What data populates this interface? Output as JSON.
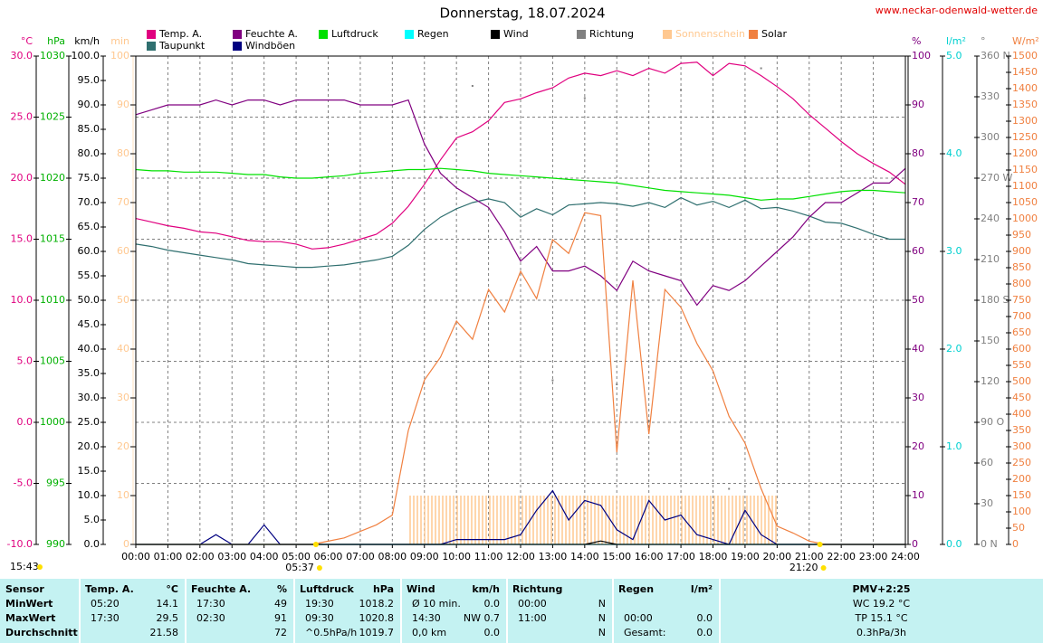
{
  "chart_data": {
    "type": "line",
    "title": "Donnerstag, 18.07.2024",
    "source": "www.neckar-odenwald-wetter.de",
    "sunrise": "05:37",
    "sunset": "21:20",
    "daylight": "15:43",
    "xlim": [
      0,
      24
    ],
    "xgrid": true,
    "xticks": [
      {
        "value": 0,
        "label": "00:00"
      },
      {
        "value": 1,
        "label": "01:00"
      },
      {
        "value": 2,
        "label": "02:00"
      },
      {
        "value": 3,
        "label": "03:00"
      },
      {
        "value": 4,
        "label": "04:00"
      },
      {
        "value": 5,
        "label": "05:00"
      },
      {
        "value": 6,
        "label": "06:00"
      },
      {
        "value": 7,
        "label": "07:00"
      },
      {
        "value": 8,
        "label": "08:00"
      },
      {
        "value": 9,
        "label": "09:00"
      },
      {
        "value": 10,
        "label": "10:00"
      },
      {
        "value": 11,
        "label": "11:00"
      },
      {
        "value": 12,
        "label": "12:00"
      },
      {
        "value": 13,
        "label": "13:00"
      },
      {
        "value": 14,
        "label": "14:00"
      },
      {
        "value": 15,
        "label": "15:00"
      },
      {
        "value": 16,
        "label": "16:00"
      },
      {
        "value": 17,
        "label": "17:00"
      },
      {
        "value": 18,
        "label": "18:00"
      },
      {
        "value": 19,
        "label": "19:00"
      },
      {
        "value": 20,
        "label": "20:00"
      },
      {
        "value": 21,
        "label": "21:00"
      },
      {
        "value": 22,
        "label": "22:00"
      },
      {
        "value": 23,
        "label": "23:00"
      },
      {
        "value": 24,
        "label": "24:00"
      }
    ],
    "x": [
      0,
      0.5,
      1,
      1.5,
      2,
      2.5,
      3,
      3.5,
      4,
      4.5,
      5,
      5.5,
      6,
      6.5,
      7,
      7.5,
      8,
      8.5,
      9,
      9.5,
      10,
      10.5,
      11,
      11.5,
      12,
      12.5,
      13,
      13.5,
      14,
      14.5,
      15,
      15.5,
      16,
      16.5,
      17,
      17.5,
      18,
      18.5,
      19,
      19.5,
      20,
      20.5,
      21,
      21.5,
      22,
      22.5,
      23,
      23.5,
      24
    ],
    "yaxes": [
      {
        "label": "°C",
        "color": "#e0007f",
        "side": "left",
        "grid": true,
        "ylim": [
          -10,
          30
        ],
        "yticks": [
          {
            "value": 30,
            "label": "30.0"
          },
          {
            "value": 25,
            "label": "25.0"
          },
          {
            "value": 20,
            "label": "20.0"
          },
          {
            "value": 15,
            "label": "15.0"
          },
          {
            "value": 10,
            "label": "10.0"
          },
          {
            "value": 5,
            "label": "5.0"
          },
          {
            "value": 0,
            "label": "0.0"
          },
          {
            "value": -5,
            "label": "-5.0"
          },
          {
            "value": -10,
            "label": "-10.0"
          }
        ]
      },
      {
        "label": "hPa",
        "color": "#00b000",
        "side": "left",
        "ylim": [
          990,
          1030
        ],
        "yticks": [
          1030,
          1025,
          1020,
          1015,
          1010,
          1005,
          1000,
          995,
          990
        ]
      },
      {
        "label": "km/h",
        "color": "#000000",
        "side": "left",
        "ylim": [
          0,
          100
        ],
        "yticks": [
          {
            "value": 100,
            "label": "100.0"
          },
          {
            "value": 95,
            "label": "95.0"
          },
          {
            "value": 90,
            "label": "90.0"
          },
          {
            "value": 85,
            "label": "85.0"
          },
          {
            "value": 80,
            "label": "80.0"
          },
          {
            "value": 75,
            "label": "75.0"
          },
          {
            "value": 70,
            "label": "70.0"
          },
          {
            "value": 65,
            "label": "65.0"
          },
          {
            "value": 60,
            "label": "60.0"
          },
          {
            "value": 55,
            "label": "55.0"
          },
          {
            "value": 50,
            "label": "50.0"
          },
          {
            "value": 45,
            "label": "45.0"
          },
          {
            "value": 40,
            "label": "40.0"
          },
          {
            "value": 35,
            "label": "35.0"
          },
          {
            "value": 30,
            "label": "30.0"
          },
          {
            "value": 25,
            "label": "25.0"
          },
          {
            "value": 20,
            "label": "20.0"
          },
          {
            "value": 15,
            "label": "15.0"
          },
          {
            "value": 10,
            "label": "10.0"
          },
          {
            "value": 5,
            "label": "5.0"
          },
          {
            "value": 0,
            "label": "0.0"
          }
        ]
      },
      {
        "label": "min",
        "color": "#ffc890",
        "side": "left",
        "ylim": [
          0,
          100
        ],
        "yticks": [
          100,
          90,
          80,
          70,
          60,
          50,
          40,
          30,
          20,
          10,
          0
        ]
      },
      {
        "label": "%",
        "color": "#800080",
        "side": "right",
        "ylim": [
          0,
          100
        ],
        "yticks": [
          100,
          90,
          80,
          70,
          60,
          50,
          40,
          30,
          20,
          10,
          0
        ]
      },
      {
        "label": "l/m²",
        "color": "#00d0d0",
        "side": "right",
        "ylim": [
          0,
          5
        ],
        "yticks": [
          {
            "value": 5,
            "label": "5.0"
          },
          {
            "value": 4,
            "label": "4.0"
          },
          {
            "value": 3,
            "label": "3.0"
          },
          {
            "value": 2,
            "label": "2.0"
          },
          {
            "value": 1,
            "label": "1.0"
          },
          {
            "value": 0,
            "label": "0.0"
          }
        ]
      },
      {
        "label": "°",
        "color": "#808080",
        "side": "right",
        "ylim": [
          0,
          360
        ],
        "yticks": [
          {
            "value": 360,
            "label": "360 N"
          },
          330,
          300,
          {
            "value": 270,
            "label": "270 W"
          },
          240,
          210,
          {
            "value": 180,
            "label": "180 S"
          },
          150,
          120,
          {
            "value": 90,
            "label": "90 O"
          },
          60,
          30,
          {
            "value": 0,
            "label": "0 N"
          }
        ]
      },
      {
        "label": "W/m²",
        "color": "#f08040",
        "side": "right",
        "ylim": [
          0,
          1500
        ],
        "yticks": [
          1500,
          1450,
          1400,
          1350,
          1300,
          1250,
          1200,
          1150,
          1100,
          1050,
          1000,
          950,
          900,
          850,
          800,
          750,
          700,
          650,
          600,
          550,
          500,
          450,
          400,
          350,
          300,
          250,
          200,
          150,
          100,
          50,
          0
        ]
      }
    ],
    "series": [
      {
        "name": "Temp. A.",
        "type": "line",
        "axis": 0,
        "color": "#e0007f",
        "values": [
          16.7,
          16.4,
          16.1,
          15.9,
          15.6,
          15.5,
          15.2,
          14.9,
          14.8,
          14.8,
          14.6,
          14.2,
          14.3,
          14.6,
          15.0,
          15.4,
          16.3,
          17.7,
          19.5,
          21.5,
          23.3,
          23.8,
          24.7,
          26.2,
          26.5,
          27.0,
          27.4,
          28.2,
          28.6,
          28.4,
          28.8,
          28.4,
          29.0,
          28.6,
          29.4,
          29.5,
          28.4,
          29.4,
          29.2,
          28.4,
          27.5,
          26.5,
          25.2,
          24.1,
          23.0,
          22.0,
          21.2,
          20.5,
          19.5
        ]
      },
      {
        "name": "Taupunkt",
        "type": "line",
        "axis": 0,
        "color": "#2f6f6f",
        "values": [
          14.6,
          14.4,
          14.1,
          13.9,
          13.7,
          13.5,
          13.3,
          13.0,
          12.9,
          12.8,
          12.7,
          12.7,
          12.8,
          12.9,
          13.1,
          13.3,
          13.6,
          14.5,
          15.8,
          16.8,
          17.5,
          18.0,
          18.3,
          18.0,
          16.8,
          17.5,
          17.0,
          17.8,
          17.9,
          18.0,
          17.9,
          17.7,
          18.0,
          17.6,
          18.4,
          17.8,
          18.1,
          17.6,
          18.2,
          17.5,
          17.6,
          17.3,
          16.9,
          16.4,
          16.3,
          15.9,
          15.4,
          15.0,
          15.0
        ]
      },
      {
        "name": "Feuchte A.",
        "type": "line",
        "axis": 4,
        "color": "#800080",
        "values": [
          88,
          89,
          90,
          90,
          90,
          91,
          90,
          91,
          91,
          90,
          91,
          91,
          91,
          91,
          90,
          90,
          90,
          91,
          82,
          76,
          73,
          71,
          69,
          64,
          58,
          61,
          56,
          56,
          57,
          55,
          52,
          58,
          56,
          55,
          54,
          49,
          53,
          52,
          54,
          57,
          60,
          63,
          67,
          70,
          70,
          72,
          74,
          74,
          77
        ]
      },
      {
        "name": "Windböen",
        "type": "line",
        "axis": 2,
        "color": "#000080",
        "values": [
          0,
          0,
          0,
          0,
          0,
          2,
          0,
          0,
          4,
          0,
          0,
          0,
          0,
          0,
          0,
          0,
          0,
          0,
          0,
          0,
          1,
          1,
          1,
          1,
          2,
          7,
          11,
          5,
          9,
          8,
          3,
          1,
          9,
          5,
          6,
          2,
          1,
          0,
          7,
          2,
          0,
          0,
          0,
          0,
          0,
          0,
          0,
          0,
          0
        ]
      },
      {
        "name": "Luftdruck",
        "type": "line",
        "axis": 1,
        "color": "#00e000",
        "values": [
          1020.7,
          1020.6,
          1020.6,
          1020.5,
          1020.5,
          1020.5,
          1020.4,
          1020.3,
          1020.3,
          1020.1,
          1020.0,
          1020.0,
          1020.1,
          1020.2,
          1020.4,
          1020.5,
          1020.6,
          1020.7,
          1020.7,
          1020.8,
          1020.7,
          1020.6,
          1020.4,
          1020.3,
          1020.2,
          1020.1,
          1020.0,
          1019.9,
          1019.8,
          1019.7,
          1019.6,
          1019.4,
          1019.2,
          1019.0,
          1018.9,
          1018.8,
          1018.7,
          1018.6,
          1018.4,
          1018.2,
          1018.3,
          1018.3,
          1018.5,
          1018.7,
          1018.9,
          1019.0,
          1019.0,
          1018.9,
          1018.8
        ]
      },
      {
        "name": "Regen",
        "type": "line",
        "axis": 5,
        "color": "#00ffff",
        "values": [
          0,
          0,
          0,
          0,
          0,
          0,
          0,
          0,
          0,
          0,
          0,
          0,
          0,
          0,
          0,
          0,
          0,
          0,
          0,
          0,
          0,
          0,
          0,
          0,
          0,
          0,
          0,
          0,
          0,
          0,
          0,
          0,
          0,
          0,
          0,
          0,
          0,
          0,
          0,
          0,
          0,
          0,
          0,
          0,
          0,
          0,
          0,
          0,
          0
        ]
      },
      {
        "name": "Wind",
        "type": "line",
        "axis": 2,
        "color": "#000000",
        "values": [
          0,
          0,
          0,
          0,
          0,
          0,
          0,
          0,
          0,
          0,
          0,
          0,
          0,
          0,
          0,
          0,
          0,
          0,
          0,
          0,
          0,
          0,
          0,
          0,
          0,
          0,
          0,
          0,
          0,
          0.7,
          0,
          0,
          0,
          0,
          0,
          0,
          0,
          0,
          0,
          0,
          0,
          0,
          0,
          0,
          0,
          0,
          0,
          0,
          0
        ]
      },
      {
        "name": "Richtung",
        "type": "scatter",
        "axis": 6,
        "color": "#808080",
        "values": [
          null,
          null,
          null,
          null,
          null,
          null,
          null,
          null,
          null,
          null,
          null,
          null,
          null,
          null,
          null,
          null,
          null,
          null,
          null,
          315,
          null,
          338,
          null,
          null,
          null,
          null,
          121,
          null,
          329,
          null,
          118,
          null,
          91,
          null,
          335,
          null,
          null,
          41,
          null,
          351,
          null,
          null,
          null,
          null,
          null,
          null,
          null,
          null,
          null
        ]
      },
      {
        "name": "Sonnenschein",
        "type": "bar",
        "axis": 3,
        "color": "#ffc890",
        "values": [
          0,
          0,
          0,
          0,
          0,
          0,
          0,
          0,
          0,
          0,
          0,
          0,
          0,
          0,
          0,
          0,
          0,
          10,
          10,
          10,
          10,
          10,
          10,
          10,
          10,
          10,
          10,
          10,
          10,
          10,
          10,
          10,
          10,
          10,
          10,
          10,
          10,
          10,
          10,
          10,
          0,
          0,
          0,
          0,
          0,
          0,
          0,
          0,
          0
        ]
      },
      {
        "name": "Solar",
        "type": "line",
        "axis": 7,
        "color": "#f08040",
        "values": [
          0,
          0,
          0,
          0,
          0,
          0,
          0,
          0,
          0,
          0,
          0,
          0,
          10,
          20,
          40,
          60,
          90,
          350,
          505,
          575,
          686,
          630,
          783,
          714,
          839,
          755,
          936,
          894,
          1019,
          1010,
          283,
          811,
          339,
          783,
          728,
          617,
          533,
          394,
          311,
          172,
          56,
          35,
          10,
          0,
          0,
          0,
          0,
          0,
          0
        ]
      }
    ]
  },
  "table": {
    "header": [
      [
        "Sensor"
      ],
      [
        "Temp. A.",
        "°C"
      ],
      [
        "Feuchte A.",
        "%"
      ],
      [
        "Luftdruck",
        "hPa"
      ],
      [
        "Wind",
        "km/h"
      ],
      [
        "Richtung"
      ],
      [
        "Regen",
        "l/m²"
      ],
      [
        "PMV+2:25"
      ]
    ],
    "rows": [
      {
        "label": "MinWert",
        "cells": [
          [
            "05:20",
            "14.1"
          ],
          [
            "17:30",
            "49"
          ],
          [
            "19:30",
            "1018.2"
          ],
          [
            "Ø 10 min.",
            "0.0"
          ],
          [
            "00:00",
            "N"
          ],
          [],
          [
            "WC 19.2 °C"
          ]
        ]
      },
      {
        "label": "MaxWert",
        "cells": [
          [
            "17:30",
            "29.5"
          ],
          [
            "02:30",
            "91"
          ],
          [
            "09:30",
            "1020.8"
          ],
          [
            "14:30",
            "NW 0.7"
          ],
          [
            "11:00",
            "N"
          ],
          [
            "00:00",
            "0.0"
          ],
          [
            "TP 15.1 °C"
          ]
        ]
      },
      {
        "label": "Durchschnitt",
        "cells": [
          [
            "21.58"
          ],
          [
            "72"
          ],
          [
            "^0.5hPa/h",
            "1019.7"
          ],
          [
            "0,0 km",
            "0.0"
          ],
          [
            "N"
          ],
          [
            "Gesamt:",
            "0.0"
          ],
          [
            "0.3hPa/3h"
          ]
        ]
      }
    ]
  }
}
